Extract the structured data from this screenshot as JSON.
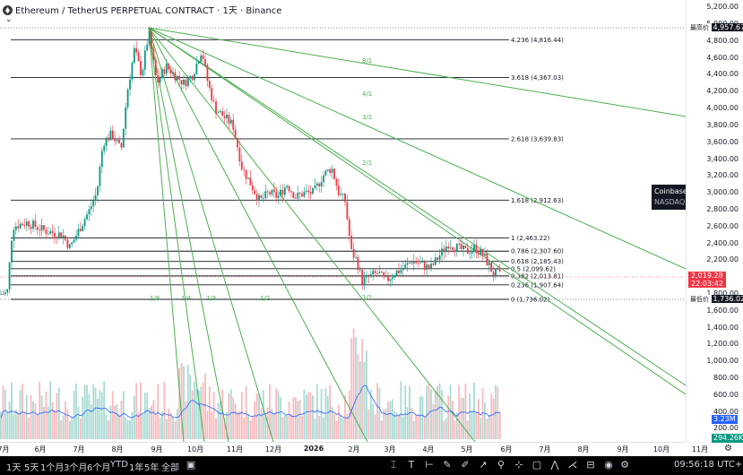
{
  "header": {
    "symbol_title": "Ethereum / TetherUS PERPETUAL CONTRACT · 1天 · Binance",
    "collapse_glyph": "⌄"
  },
  "price_axis": {
    "min": 0,
    "max": 5200,
    "ticks": [
      "5,200.00",
      "5,000.00",
      "4,800.00",
      "4,600.00",
      "4,400.00",
      "4,200.00",
      "4,000.00",
      "3,800.00",
      "3,600.00",
      "3,400.00",
      "3,200.00",
      "3,000.00",
      "2,800.00",
      "2,600.00",
      "2,400.00",
      "2,200.00",
      "1,800.00",
      "1,600.00",
      "1,400.00",
      "1,200.00",
      "1,000.00",
      "800.00",
      "600.00",
      "400.00",
      "200.00"
    ],
    "tick_values": [
      5200,
      5000,
      4800,
      4600,
      4400,
      4200,
      4000,
      3800,
      3600,
      3400,
      3200,
      3000,
      2800,
      2600,
      2400,
      2200,
      1800,
      1600,
      1400,
      1200,
      1000,
      800,
      600,
      400,
      200
    ],
    "labels": {
      "high_label": "最高价",
      "high_value": "4,957.67",
      "high_num": 4957.67,
      "current_value": "2,019.28",
      "current_num": 2019.28,
      "countdown": "22:03:42",
      "low_label": "最低价",
      "low_value": "1,736.02",
      "low_num": 1736.02,
      "volume_value": "3.23M",
      "volume_ma_value": "294.26K"
    }
  },
  "time_axis": {
    "labels": [
      "7月",
      "6月",
      "7月",
      "8月",
      "9月",
      "10月",
      "11月",
      "12月",
      "2026",
      "2月",
      "3月",
      "4月",
      "5月",
      "6月",
      "7月",
      "8月",
      "9月",
      "10月",
      "11月"
    ]
  },
  "fib_retracement": {
    "levels": [
      {
        "label": "4.236 (4,816.44)",
        "price": 4816.44
      },
      {
        "label": "3.618 (4,367.03)",
        "price": 4367.03
      },
      {
        "label": "2.618 (3,639.83)",
        "price": 3639.83
      },
      {
        "label": "1.618 (2,912.63)",
        "price": 2912.63
      },
      {
        "label": "1 (2,463.22)",
        "price": 2463.22
      },
      {
        "label": "0.786 (2,307.60)",
        "price": 2307.6
      },
      {
        "label": "0.618 (2,185.43)",
        "price": 2185.43
      },
      {
        "label": "0.5 (2,099.62)",
        "price": 2099.62
      },
      {
        "label": "0.382 (2,013.81)",
        "price": 2013.81
      },
      {
        "label": "0.236 (1,907.64)",
        "price": 1907.64
      },
      {
        "label": "0 (1,736.02)",
        "price": 1736.02
      }
    ]
  },
  "gann_fan": {
    "labels": [
      "8/1",
      "4/1",
      "3/1",
      "2/1",
      "1/1",
      "1/2",
      "1/3",
      "1/4",
      "1/8"
    ]
  },
  "tooltip": {
    "company": "Coinbase Global, Inc. Class A",
    "exchange": "NASDAQ",
    "realtime": "实时",
    "status": "休市"
  },
  "bottom_bar": {
    "timeframes": [
      "1天",
      "5天",
      "1个月",
      "3个月",
      "6个月",
      "YTD",
      "1年",
      "5年",
      "全部"
    ],
    "clock": "09:56:18 UTC+8",
    "tools": [
      "calendar-icon",
      "cursor-icon",
      "text-icon",
      "path-icon",
      "brush-icon",
      "pencil-icon",
      "arrow-icon",
      "pin-icon",
      "measure-icon",
      "rectangle-icon",
      "pattern-icon",
      "gann-icon",
      "ruler-icon",
      "eye-icon",
      "settings-icon"
    ]
  },
  "colors": {
    "candle_up": "#089981",
    "candle_down": "#f23645",
    "fan_line": "#4caf50",
    "fib_line": "#131722",
    "volume_ma": "#2962ff",
    "current_price_bg": "#f23645",
    "label_bg": "#131722"
  }
}
